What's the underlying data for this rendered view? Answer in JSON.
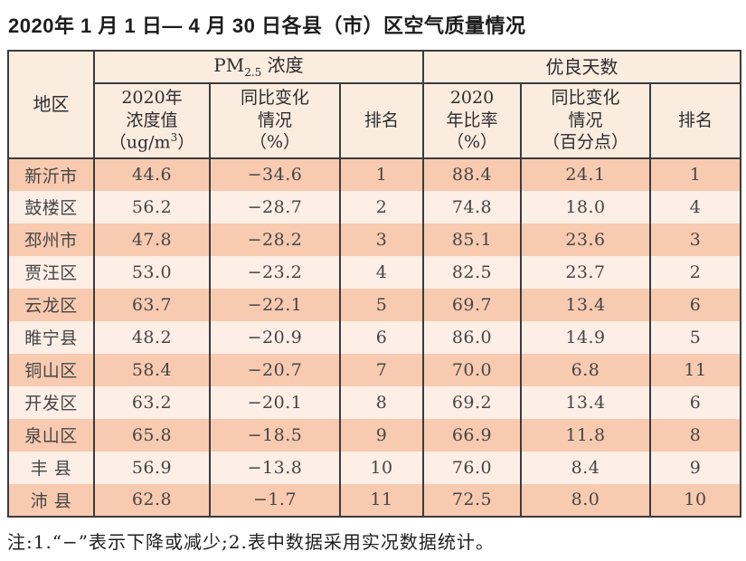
{
  "chart_data": {
    "type": "table",
    "title": "2020年 1 月 1 日— 4 月 30 日各县（市）区空气质量情况",
    "note": "注:1.“−”表示下降或减少;2.表中数据采用实况数据统计。",
    "headers": {
      "region": "地区",
      "pm_group_prefix": "PM",
      "pm_group_sub": "2.5",
      "pm_group_suffix": " 浓度",
      "good_days_group": "优良天数"
    },
    "col_headers": {
      "pm_value_l1": "2020年",
      "pm_value_l2": "浓度值",
      "pm_value_unit_open": "（ug/m",
      "pm_value_unit_sup": "3",
      "pm_value_unit_close": "）",
      "pm_change_l1": "同比变化",
      "pm_change_l2": "情况",
      "pm_change_l3": "（%）",
      "pm_rank": "排名",
      "ratio_l1": "2020",
      "ratio_l2": "年比率",
      "ratio_l3": "（%）",
      "ratio_change_l1": "同比变化",
      "ratio_change_l2": "情况",
      "ratio_change_l3": "（百分点）",
      "ratio_rank": "排名"
    },
    "columns": [
      "地区",
      "2020年浓度值（ug/m3）",
      "同比变化情况（%）",
      "排名",
      "2020年比率（%）",
      "同比变化情况（百分点）",
      "排名"
    ],
    "rows": [
      {
        "region": "新沂市",
        "pm_value": "44.6",
        "pm_change": "−34.6",
        "pm_rank": "1",
        "ratio": "88.4",
        "ratio_change": "24.1",
        "ratio_rank": "1"
      },
      {
        "region": "鼓楼区",
        "pm_value": "56.2",
        "pm_change": "−28.7",
        "pm_rank": "2",
        "ratio": "74.8",
        "ratio_change": "18.0",
        "ratio_rank": "4"
      },
      {
        "region": "邳州市",
        "pm_value": "47.8",
        "pm_change": "−28.2",
        "pm_rank": "3",
        "ratio": "85.1",
        "ratio_change": "23.6",
        "ratio_rank": "3"
      },
      {
        "region": "贾汪区",
        "pm_value": "53.0",
        "pm_change": "−23.2",
        "pm_rank": "4",
        "ratio": "82.5",
        "ratio_change": "23.7",
        "ratio_rank": "2"
      },
      {
        "region": "云龙区",
        "pm_value": "63.7",
        "pm_change": "−22.1",
        "pm_rank": "5",
        "ratio": "69.7",
        "ratio_change": "13.4",
        "ratio_rank": "6"
      },
      {
        "region": "睢宁县",
        "pm_value": "48.2",
        "pm_change": "−20.9",
        "pm_rank": "6",
        "ratio": "86.0",
        "ratio_change": "14.9",
        "ratio_rank": "5"
      },
      {
        "region": "铜山区",
        "pm_value": "58.4",
        "pm_change": "−20.7",
        "pm_rank": "7",
        "ratio": "70.0",
        "ratio_change": "6.8",
        "ratio_rank": "11"
      },
      {
        "region": "开发区",
        "pm_value": "63.2",
        "pm_change": "−20.1",
        "pm_rank": "8",
        "ratio": "69.2",
        "ratio_change": "13.4",
        "ratio_rank": "6"
      },
      {
        "region": "泉山区",
        "pm_value": "65.8",
        "pm_change": "−18.5",
        "pm_rank": "9",
        "ratio": "66.9",
        "ratio_change": "11.8",
        "ratio_rank": "8"
      },
      {
        "region": "丰 县",
        "pm_value": "56.9",
        "pm_change": "−13.8",
        "pm_rank": "10",
        "ratio": "76.0",
        "ratio_change": "8.4",
        "ratio_rank": "9"
      },
      {
        "region": "沛 县",
        "pm_value": "62.8",
        "pm_change": "−1.7",
        "pm_rank": "11",
        "ratio": "72.5",
        "ratio_change": "8.0",
        "ratio_rank": "10"
      }
    ]
  },
  "colors": {
    "row-odd": "#f8cab0",
    "row-even": "#fdeee6",
    "header-bg": "#fbece0",
    "border": "#3b3b3b",
    "text": "#464646",
    "title-text": "#1c1c1c"
  }
}
